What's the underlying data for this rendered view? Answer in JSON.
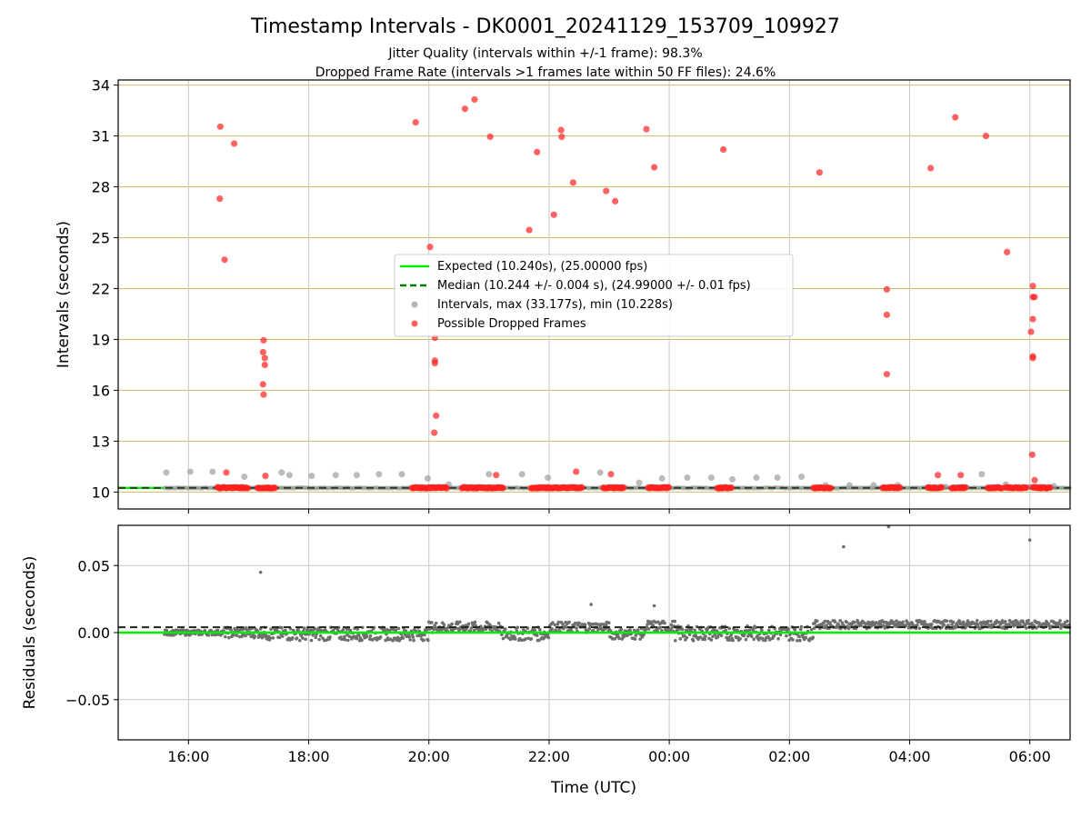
{
  "chart_data": {
    "type": "scatter",
    "title": "Timestamp Intervals - DK0001_20241129_153709_109927",
    "subtitle_1": "Jitter Quality (intervals within +/-1 frame): 98.3%",
    "subtitle_2": "Dropped Frame Rate (intervals >1 frames late within 50 FF files): 24.6%",
    "xlabel": "Time (UTC)",
    "x_ticks": [
      "16:00",
      "18:00",
      "20:00",
      "22:00",
      "00:00",
      "02:00",
      "04:00",
      "06:00"
    ],
    "x_tick_hours": [
      16,
      18,
      20,
      22,
      24,
      26,
      28,
      30
    ],
    "xlim_hours": [
      14.83,
      30.67
    ],
    "grid": true,
    "legend_position": "center",
    "colors": {
      "expected": "#00ee00",
      "median": "#007f00",
      "intervals": "#9e9e9e",
      "dropped": "#ff2020",
      "residuals": "#6f6f6f",
      "gridline_top": "#d2b96a",
      "gridline": "#c8c8c8"
    },
    "top": {
      "ylabel": "Intervals (seconds)",
      "ylim": [
        9.0,
        34.3
      ],
      "y_ticks": [
        10,
        13,
        16,
        19,
        22,
        25,
        28,
        31,
        34
      ],
      "expected_value": 10.24,
      "median_value": 10.244,
      "legend": [
        "Expected (10.240s), (25.00000 fps)",
        "Median (10.244 +/- 0.004 s), (24.99000 +/- 0.01 fps)",
        "Intervals, max (33.177s), min (10.228s)",
        "Possible Dropped Frames"
      ],
      "interval_points": [
        [
          15.63,
          11.15
        ],
        [
          16.03,
          11.2
        ],
        [
          16.4,
          11.2
        ],
        [
          16.93,
          10.9
        ],
        [
          17.55,
          11.15
        ],
        [
          17.68,
          11.0
        ],
        [
          18.05,
          10.95
        ],
        [
          18.45,
          11.0
        ],
        [
          18.8,
          11.0
        ],
        [
          19.17,
          11.05
        ],
        [
          19.55,
          11.05
        ],
        [
          19.98,
          10.8
        ],
        [
          20.33,
          10.45
        ],
        [
          21.0,
          11.05
        ],
        [
          21.55,
          11.05
        ],
        [
          21.98,
          10.85
        ],
        [
          22.85,
          11.15
        ],
        [
          23.5,
          10.55
        ],
        [
          23.88,
          10.8
        ],
        [
          24.3,
          10.85
        ],
        [
          24.7,
          10.85
        ],
        [
          25.05,
          10.75
        ],
        [
          25.45,
          10.85
        ],
        [
          25.8,
          10.85
        ],
        [
          26.2,
          10.9
        ],
        [
          26.6,
          10.4
        ],
        [
          27.0,
          10.4
        ],
        [
          27.4,
          10.4
        ],
        [
          27.8,
          10.4
        ],
        [
          28.6,
          10.3
        ],
        [
          29.2,
          11.05
        ],
        [
          29.6,
          10.45
        ],
        [
          30.0,
          10.3
        ],
        [
          30.4,
          10.35
        ]
      ],
      "dropped_points": [
        [
          16.53,
          31.55
        ],
        [
          16.76,
          30.55
        ],
        [
          16.52,
          27.3
        ],
        [
          16.6,
          23.7
        ],
        [
          16.63,
          11.15
        ],
        [
          17.25,
          18.95
        ],
        [
          17.24,
          18.25
        ],
        [
          17.27,
          17.9
        ],
        [
          17.27,
          17.5
        ],
        [
          17.24,
          16.35
        ],
        [
          17.25,
          15.75
        ],
        [
          17.28,
          10.95
        ],
        [
          19.78,
          31.8
        ],
        [
          20.02,
          24.45
        ],
        [
          20.1,
          19.1
        ],
        [
          20.1,
          17.75
        ],
        [
          20.1,
          17.6
        ],
        [
          20.12,
          14.5
        ],
        [
          20.09,
          13.5
        ],
        [
          20.6,
          32.6
        ],
        [
          20.76,
          33.15
        ],
        [
          21.02,
          30.95
        ],
        [
          21.12,
          11.0
        ],
        [
          21.67,
          25.45
        ],
        [
          21.8,
          30.05
        ],
        [
          22.08,
          26.35
        ],
        [
          22.2,
          31.35
        ],
        [
          22.21,
          30.95
        ],
        [
          22.4,
          28.25
        ],
        [
          22.45,
          11.2
        ],
        [
          22.95,
          27.75
        ],
        [
          23.1,
          27.15
        ],
        [
          23.03,
          11.05
        ],
        [
          23.62,
          31.4
        ],
        [
          23.75,
          29.15
        ],
        [
          24.9,
          30.2
        ],
        [
          26.5,
          28.85
        ],
        [
          27.62,
          21.95
        ],
        [
          27.62,
          20.45
        ],
        [
          27.62,
          16.95
        ],
        [
          28.35,
          29.1
        ],
        [
          28.47,
          11.0
        ],
        [
          28.76,
          32.1
        ],
        [
          28.85,
          11.0
        ],
        [
          29.27,
          31.0
        ],
        [
          29.62,
          24.15
        ],
        [
          30.05,
          22.15
        ],
        [
          30.05,
          21.5
        ],
        [
          30.08,
          21.5
        ],
        [
          30.05,
          20.2
        ],
        [
          30.02,
          19.45
        ],
        [
          30.05,
          18.0
        ],
        [
          30.05,
          17.9
        ],
        [
          30.04,
          12.2
        ],
        [
          30.08,
          10.7
        ]
      ],
      "dropped_baseline_clusters": [
        [
          16.48,
          17.0
        ],
        [
          17.15,
          17.45
        ],
        [
          19.72,
          20.3
        ],
        [
          20.55,
          21.25
        ],
        [
          21.7,
          22.55
        ],
        [
          22.9,
          23.25
        ],
        [
          23.65,
          24.0
        ],
        [
          24.8,
          25.05
        ],
        [
          26.4,
          26.7
        ],
        [
          27.55,
          27.85
        ],
        [
          28.3,
          28.55
        ],
        [
          28.7,
          28.95
        ],
        [
          29.3,
          29.55
        ],
        [
          29.6,
          29.95
        ],
        [
          30.05,
          30.35
        ]
      ]
    },
    "bottom": {
      "ylabel": "Residuals (seconds)",
      "ylim": [
        -0.08,
        0.08
      ],
      "y_ticks": [
        -0.05,
        0.0,
        0.05
      ],
      "y_tick_labels": [
        "−0.05",
        "0.00",
        "0.05"
      ],
      "expected_value": 0.0,
      "median_value": 0.004,
      "outliers": [
        [
          17.2,
          0.045
        ],
        [
          22.7,
          0.021
        ],
        [
          23.75,
          0.02
        ],
        [
          26.9,
          0.064
        ],
        [
          27.65,
          0.079
        ],
        [
          30.0,
          0.069
        ]
      ],
      "band_segments": [
        [
          15.6,
          16.6,
          -0.002,
          0.002
        ],
        [
          16.6,
          17.3,
          -0.004,
          0.004
        ],
        [
          17.3,
          20.0,
          -0.006,
          0.004
        ],
        [
          20.0,
          21.2,
          0.0,
          0.008
        ],
        [
          21.2,
          22.0,
          -0.006,
          0.004
        ],
        [
          22.0,
          23.0,
          0.0,
          0.008
        ],
        [
          23.0,
          23.6,
          -0.005,
          0.003
        ],
        [
          23.6,
          24.1,
          0.0,
          0.009
        ],
        [
          24.1,
          26.4,
          -0.006,
          0.005
        ],
        [
          26.4,
          30.67,
          0.003,
          0.009
        ]
      ]
    }
  }
}
